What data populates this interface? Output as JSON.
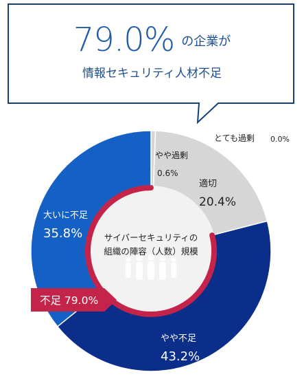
{
  "headline": {
    "percent": "79.0%",
    "suffix": "の企業が",
    "subtitle": "情報セキュリティ人材不足"
  },
  "chart_data": {
    "type": "pie",
    "center_label": [
      "サイバーセキュリティの",
      "組織の陣容（人数）規模"
    ],
    "slices": [
      {
        "name": "とても過剰",
        "value": 0.0,
        "label": "0.0%",
        "color": "#d6d6d6"
      },
      {
        "name": "やや過剰",
        "value": 0.6,
        "label": "0.6%",
        "color": "#d6d6d6"
      },
      {
        "name": "適切",
        "value": 20.4,
        "label": "20.4%",
        "color": "#d6d6d6"
      },
      {
        "name": "やや不足",
        "value": 43.2,
        "label": "43.2%",
        "color": "#0a2e8a"
      },
      {
        "name": "大いに不足",
        "value": 35.8,
        "label": "35.8%",
        "color": "#1560c4"
      }
    ],
    "shortage_badge": "不足 79.0%",
    "colors": {
      "ring": "#c4244a",
      "badge": "#c4244a",
      "excess": "#d6d6d6"
    }
  }
}
